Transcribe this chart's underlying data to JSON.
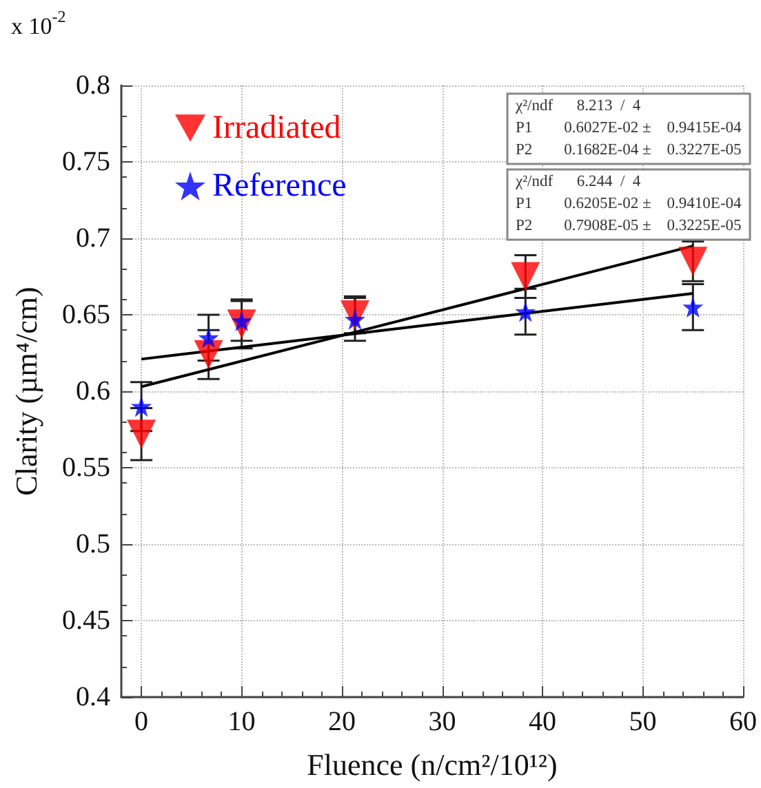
{
  "chart_data": {
    "type": "scatter",
    "xlabel": "Fluence (n/cm²/10¹²)",
    "ylabel": "Clarity (µm⁴/cm)",
    "xlim": [
      -2,
      60
    ],
    "xticks": [
      0,
      10,
      20,
      30,
      40,
      50,
      60
    ],
    "ylim": [
      0.4,
      0.8
    ],
    "yticks": [
      0.4,
      0.45,
      0.5,
      0.55,
      0.6,
      0.65,
      0.7,
      0.75,
      0.8
    ],
    "grid": true,
    "legend": "top left",
    "series": [
      {
        "name": "Irradiated",
        "color": "#ff0000",
        "marker": "triangle",
        "x": [
          0,
          6.7,
          10,
          21.3,
          38.3,
          55
        ],
        "values": [
          0.572,
          0.624,
          0.644,
          0.65,
          0.675,
          0.685
        ],
        "errors": [
          0.017,
          0.016,
          0.016,
          0.012,
          0.014,
          0.013
        ]
      },
      {
        "name": "Reference",
        "color": "#0000ff",
        "marker": "star",
        "x": [
          0,
          6.7,
          10,
          21.3,
          38.3,
          55
        ],
        "values": [
          0.59,
          0.635,
          0.646,
          0.647,
          0.652,
          0.655
        ],
        "errors": [
          0.016,
          0.015,
          0.013,
          0.014,
          0.015,
          0.015
        ]
      },
      {
        "type": "line",
        "color": "#000000",
        "marker": "none",
        "x": [
          0,
          55
        ],
        "values": [
          0.603,
          0.695
        ]
      },
      {
        "type": "line",
        "color": "#000000",
        "marker": "none",
        "x": [
          0,
          55
        ],
        "values": [
          0.621,
          0.664
        ]
      }
    ],
    "annotations": [
      "x 10$^{-2}$",
      "χ²/ndf      8.213  /  4",
      "P1        0.6027E-02 ±    0.9415E-04",
      "P2        0.1682E-04 ±    0.3227E-05",
      "χ²/ndf      6.244  /  4",
      "P1        0.6205E-02 ±    0.9410E-04",
      "P2        0.7908E-05 ±    0.3225E-05"
    ]
  }
}
